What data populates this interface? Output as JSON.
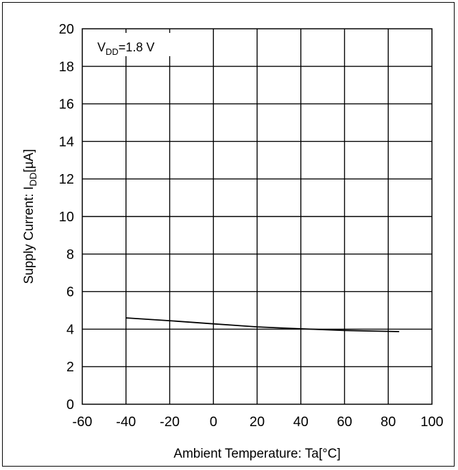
{
  "chart_data": {
    "type": "line",
    "title": "",
    "xlabel": "Ambient Temperature: Ta[°C]",
    "ylabel": "Supply Current: I",
    "ylabel_sub": "DD",
    "ylabel_unit": "[µA]",
    "xlim": [
      -60,
      100
    ],
    "ylim": [
      0,
      20
    ],
    "xticks": [
      -60,
      -40,
      -20,
      0,
      20,
      40,
      60,
      80,
      100
    ],
    "yticks": [
      0,
      2,
      4,
      6,
      8,
      10,
      12,
      14,
      16,
      18,
      20
    ],
    "grid": true,
    "annotation": {
      "prefix": "V",
      "sub": "DD",
      "suffix": "=1.8 V"
    },
    "series": [
      {
        "x": [
          -40,
          -20,
          0,
          10,
          20,
          40,
          60,
          85
        ],
        "y": [
          4.6,
          4.45,
          4.28,
          4.2,
          4.12,
          4.02,
          3.93,
          3.87
        ]
      }
    ]
  }
}
